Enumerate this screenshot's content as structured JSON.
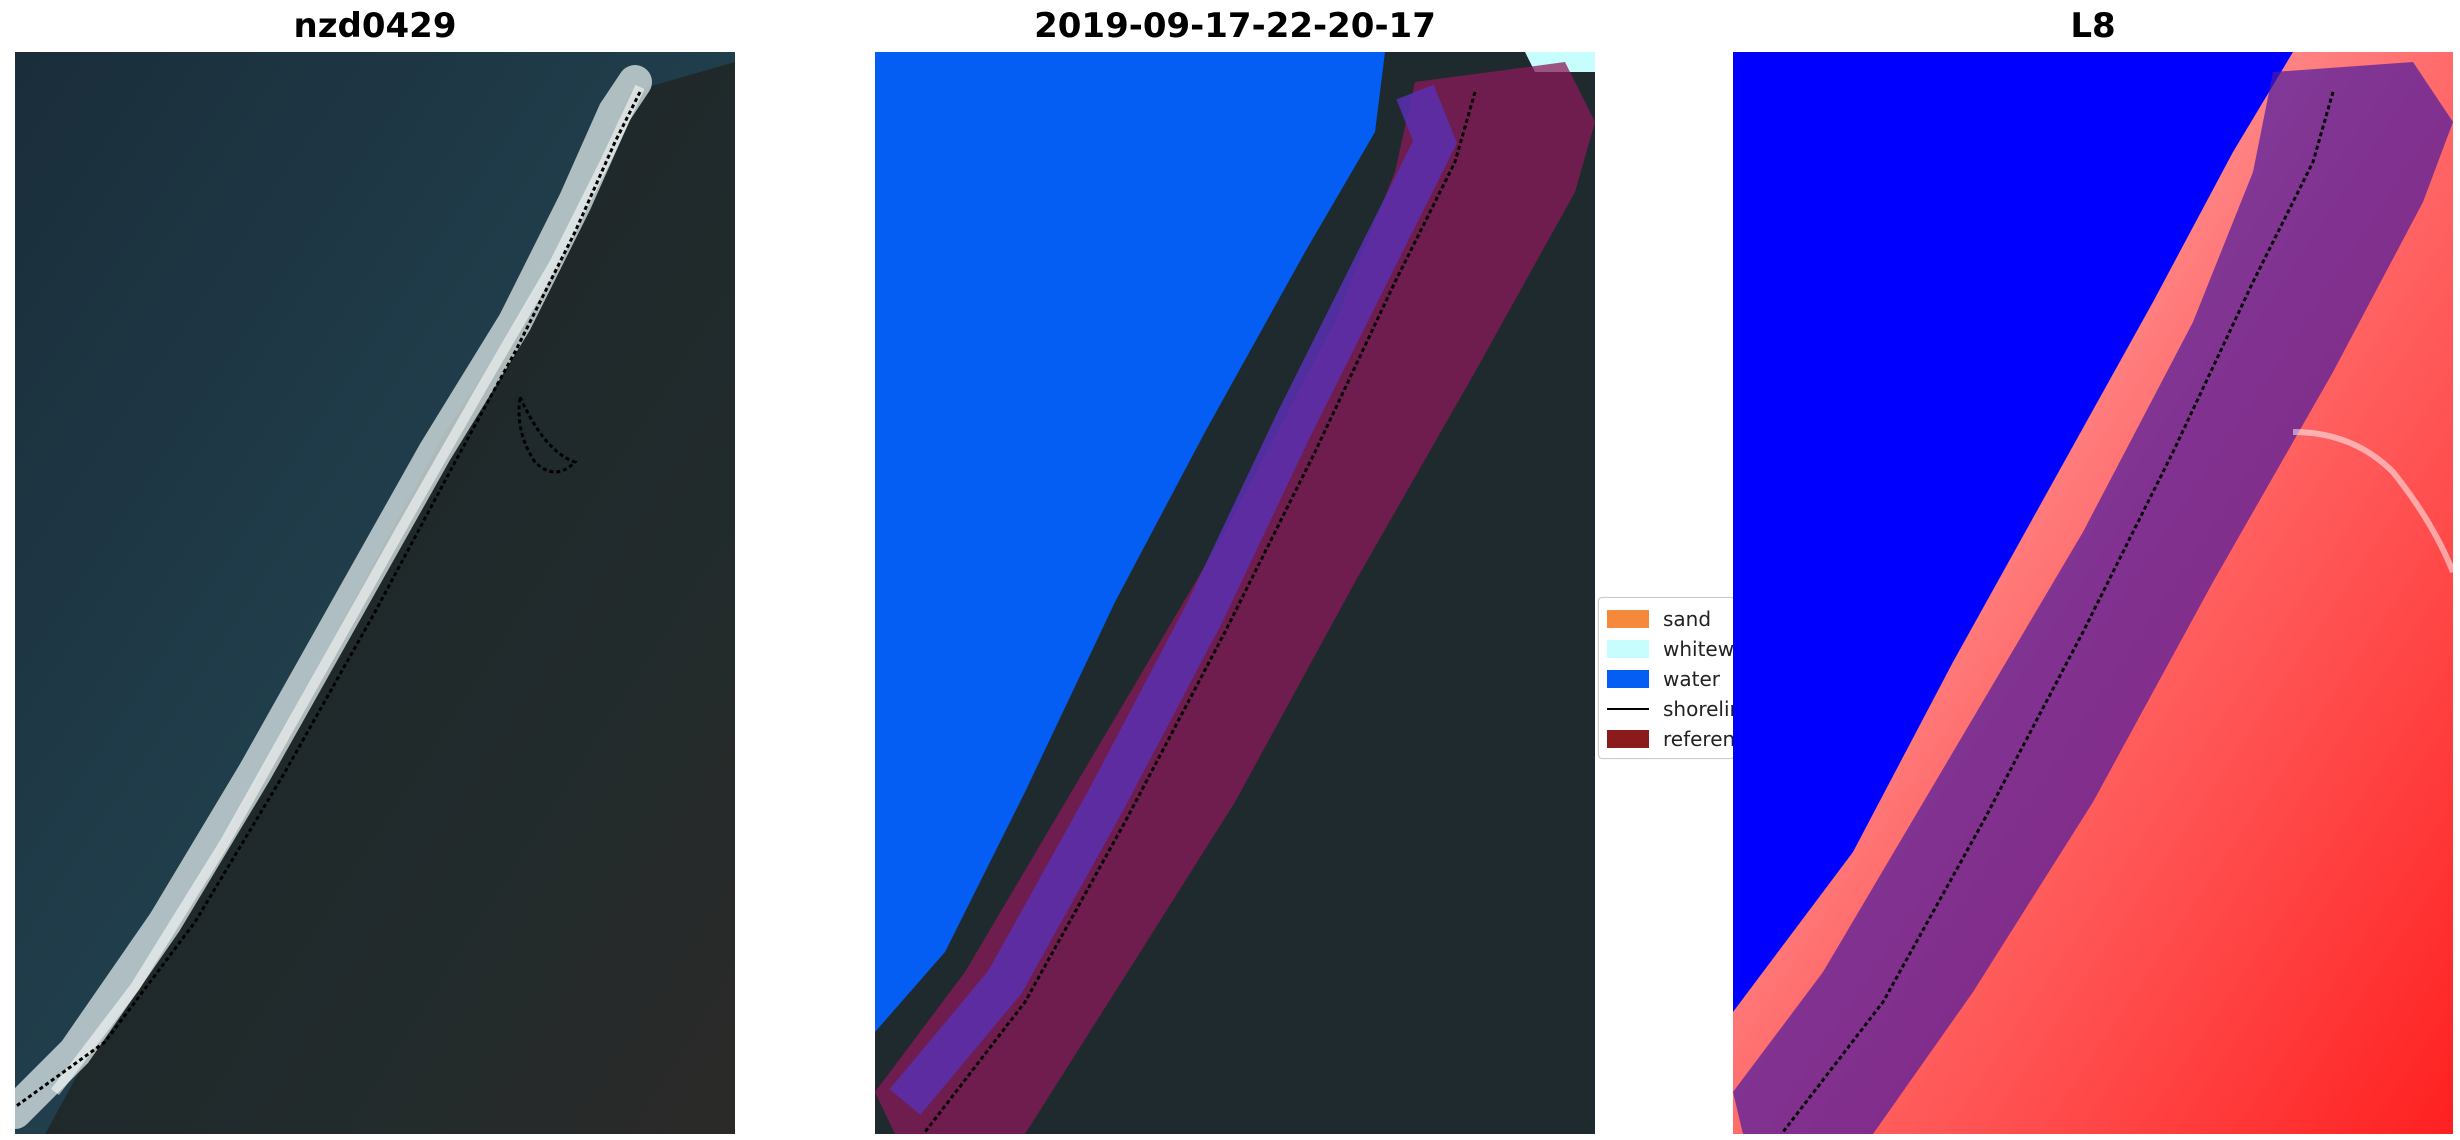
{
  "panels": [
    {
      "title": "nzd0429"
    },
    {
      "title": "2019-09-17-22-20-17"
    },
    {
      "title": "L8"
    }
  ],
  "legend": {
    "items": [
      {
        "label": "sand",
        "color": "#f5883b",
        "kind": "patch"
      },
      {
        "label": "whitewater",
        "color": "#c8fdfd",
        "kind": "patch"
      },
      {
        "label": "water",
        "color": "#045ef4",
        "kind": "patch"
      },
      {
        "label": "shoreline",
        "color": "#000000",
        "kind": "line"
      },
      {
        "label": "reference",
        "color": "#8b1a1a",
        "kind": "patch"
      }
    ]
  },
  "colors": {
    "ocean": "#1d3442",
    "land": "#1f2a2e",
    "surf": "#d8e4e6",
    "water_class": "#045ef4",
    "reference_band": "#8b1a1a",
    "index_blue": "#0000ff",
    "index_red": "#ff1a1a"
  }
}
